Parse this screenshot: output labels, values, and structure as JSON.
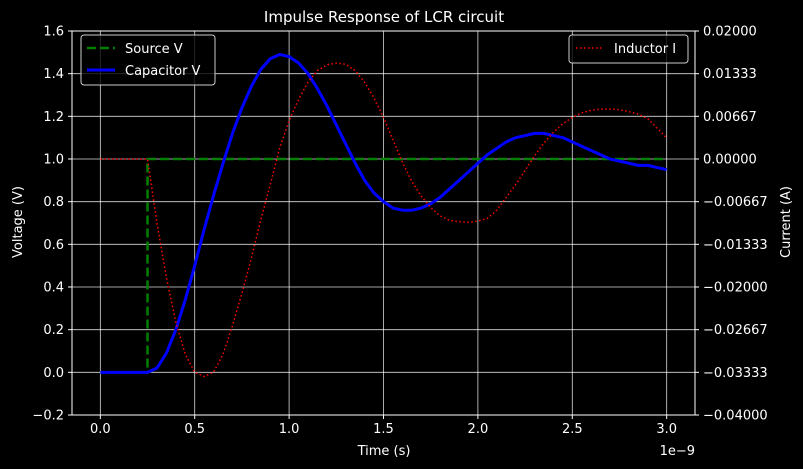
{
  "chart_data": {
    "type": "line",
    "title": "Impulse Response of LCR circuit",
    "xlabel": "Time (s)",
    "ylabel": "Voltage (V)",
    "y2label": "Current (A)",
    "x_offset_label": "1e−9",
    "xlim": [
      -0.15,
      3.15
    ],
    "ylim": [
      -0.2,
      1.6
    ],
    "y2lim": [
      -0.04,
      0.02
    ],
    "grid": true,
    "background": "#000000",
    "xticks": [
      0.0,
      0.5,
      1.0,
      1.5,
      2.0,
      2.5,
      3.0
    ],
    "xtick_labels": [
      "0.0",
      "0.5",
      "1.0",
      "1.5",
      "2.0",
      "2.5",
      "3.0"
    ],
    "yticks": [
      -0.2,
      0.0,
      0.2,
      0.4,
      0.6,
      0.8,
      1.0,
      1.2,
      1.4,
      1.6
    ],
    "ytick_labels": [
      "−0.2",
      "0.0",
      "0.2",
      "0.4",
      "0.6",
      "0.8",
      "1.0",
      "1.2",
      "1.4",
      "1.6"
    ],
    "y2ticks": [
      -0.04,
      -0.03333,
      -0.02667,
      -0.02,
      -0.01333,
      -0.00667,
      0.0,
      0.00667,
      0.01333,
      0.02
    ],
    "y2tick_labels": [
      "−0.04000",
      "−0.03333",
      "−0.02667",
      "−0.02000",
      "−0.01333",
      "−0.00667",
      "0.00000",
      "0.00667",
      "0.01333",
      "0.02000"
    ],
    "legend_left": {
      "placement": "top-left",
      "entries": [
        {
          "label": "Source V",
          "color": "#008000",
          "style": "dashed"
        },
        {
          "label": "Capacitor V",
          "color": "#0000ff",
          "style": "solid"
        }
      ]
    },
    "legend_right": {
      "placement": "top-right",
      "entries": [
        {
          "label": "Inductor I",
          "color": "#ff0000",
          "style": "dotted"
        }
      ]
    },
    "series": [
      {
        "name": "Source V",
        "axis": "left",
        "color": "#008000",
        "style": "dashed",
        "x": [
          0.0,
          0.25,
          0.25,
          3.0
        ],
        "y": [
          0.0,
          0.0,
          1.0,
          1.0
        ]
      },
      {
        "name": "Capacitor V",
        "axis": "left",
        "color": "#0000ff",
        "style": "solid",
        "x": [
          0.0,
          0.25,
          0.3,
          0.35,
          0.4,
          0.45,
          0.5,
          0.55,
          0.6,
          0.65,
          0.7,
          0.75,
          0.8,
          0.85,
          0.9,
          0.95,
          1.0,
          1.05,
          1.1,
          1.15,
          1.2,
          1.25,
          1.3,
          1.35,
          1.4,
          1.45,
          1.5,
          1.55,
          1.6,
          1.65,
          1.7,
          1.75,
          1.8,
          1.85,
          1.9,
          1.95,
          2.0,
          2.05,
          2.1,
          2.15,
          2.2,
          2.25,
          2.3,
          2.35,
          2.4,
          2.45,
          2.5,
          2.55,
          2.6,
          2.65,
          2.7,
          2.75,
          2.8,
          2.85,
          2.9,
          2.95,
          3.0
        ],
        "y": [
          0.0,
          0.0,
          0.02,
          0.09,
          0.2,
          0.34,
          0.5,
          0.67,
          0.83,
          0.98,
          1.12,
          1.24,
          1.34,
          1.42,
          1.47,
          1.49,
          1.48,
          1.45,
          1.4,
          1.33,
          1.25,
          1.16,
          1.07,
          0.98,
          0.9,
          0.84,
          0.8,
          0.77,
          0.76,
          0.76,
          0.77,
          0.79,
          0.82,
          0.86,
          0.9,
          0.94,
          0.98,
          1.02,
          1.05,
          1.08,
          1.1,
          1.11,
          1.12,
          1.12,
          1.11,
          1.1,
          1.08,
          1.06,
          1.04,
          1.02,
          1.0,
          0.99,
          0.98,
          0.97,
          0.97,
          0.96,
          0.95
        ]
      },
      {
        "name": "Inductor I",
        "axis": "right",
        "color": "#ff0000",
        "style": "dotted",
        "x": [
          0.0,
          0.25,
          0.3,
          0.35,
          0.4,
          0.45,
          0.5,
          0.55,
          0.6,
          0.65,
          0.7,
          0.75,
          0.8,
          0.85,
          0.9,
          0.95,
          1.0,
          1.05,
          1.1,
          1.15,
          1.2,
          1.25,
          1.3,
          1.35,
          1.4,
          1.45,
          1.5,
          1.55,
          1.6,
          1.65,
          1.7,
          1.75,
          1.8,
          1.85,
          1.9,
          1.95,
          2.0,
          2.05,
          2.1,
          2.15,
          2.2,
          2.25,
          2.3,
          2.35,
          2.4,
          2.45,
          2.5,
          2.55,
          2.6,
          2.65,
          2.7,
          2.75,
          2.8,
          2.85,
          2.9,
          2.95,
          3.0
        ],
        "y": [
          0.0,
          0.0,
          -0.01,
          -0.0185,
          -0.0255,
          -0.0305,
          -0.0333,
          -0.034,
          -0.0333,
          -0.0305,
          -0.026,
          -0.021,
          -0.0155,
          -0.0095,
          -0.004,
          0.0017,
          0.006,
          0.0093,
          0.012,
          0.0138,
          0.0147,
          0.015,
          0.0148,
          0.0138,
          0.012,
          0.0095,
          0.0065,
          0.003,
          -0.0005,
          -0.0035,
          -0.0058,
          -0.0076,
          -0.0089,
          -0.0096,
          -0.0098,
          -0.0099,
          -0.0097,
          -0.0093,
          -0.008,
          -0.006,
          -0.004,
          -0.0018,
          0.0005,
          0.0025,
          0.0042,
          0.0055,
          0.0065,
          0.0072,
          0.0076,
          0.0078,
          0.0078,
          0.0077,
          0.0074,
          0.007,
          0.0063,
          0.0048,
          0.0033
        ]
      }
    ]
  }
}
